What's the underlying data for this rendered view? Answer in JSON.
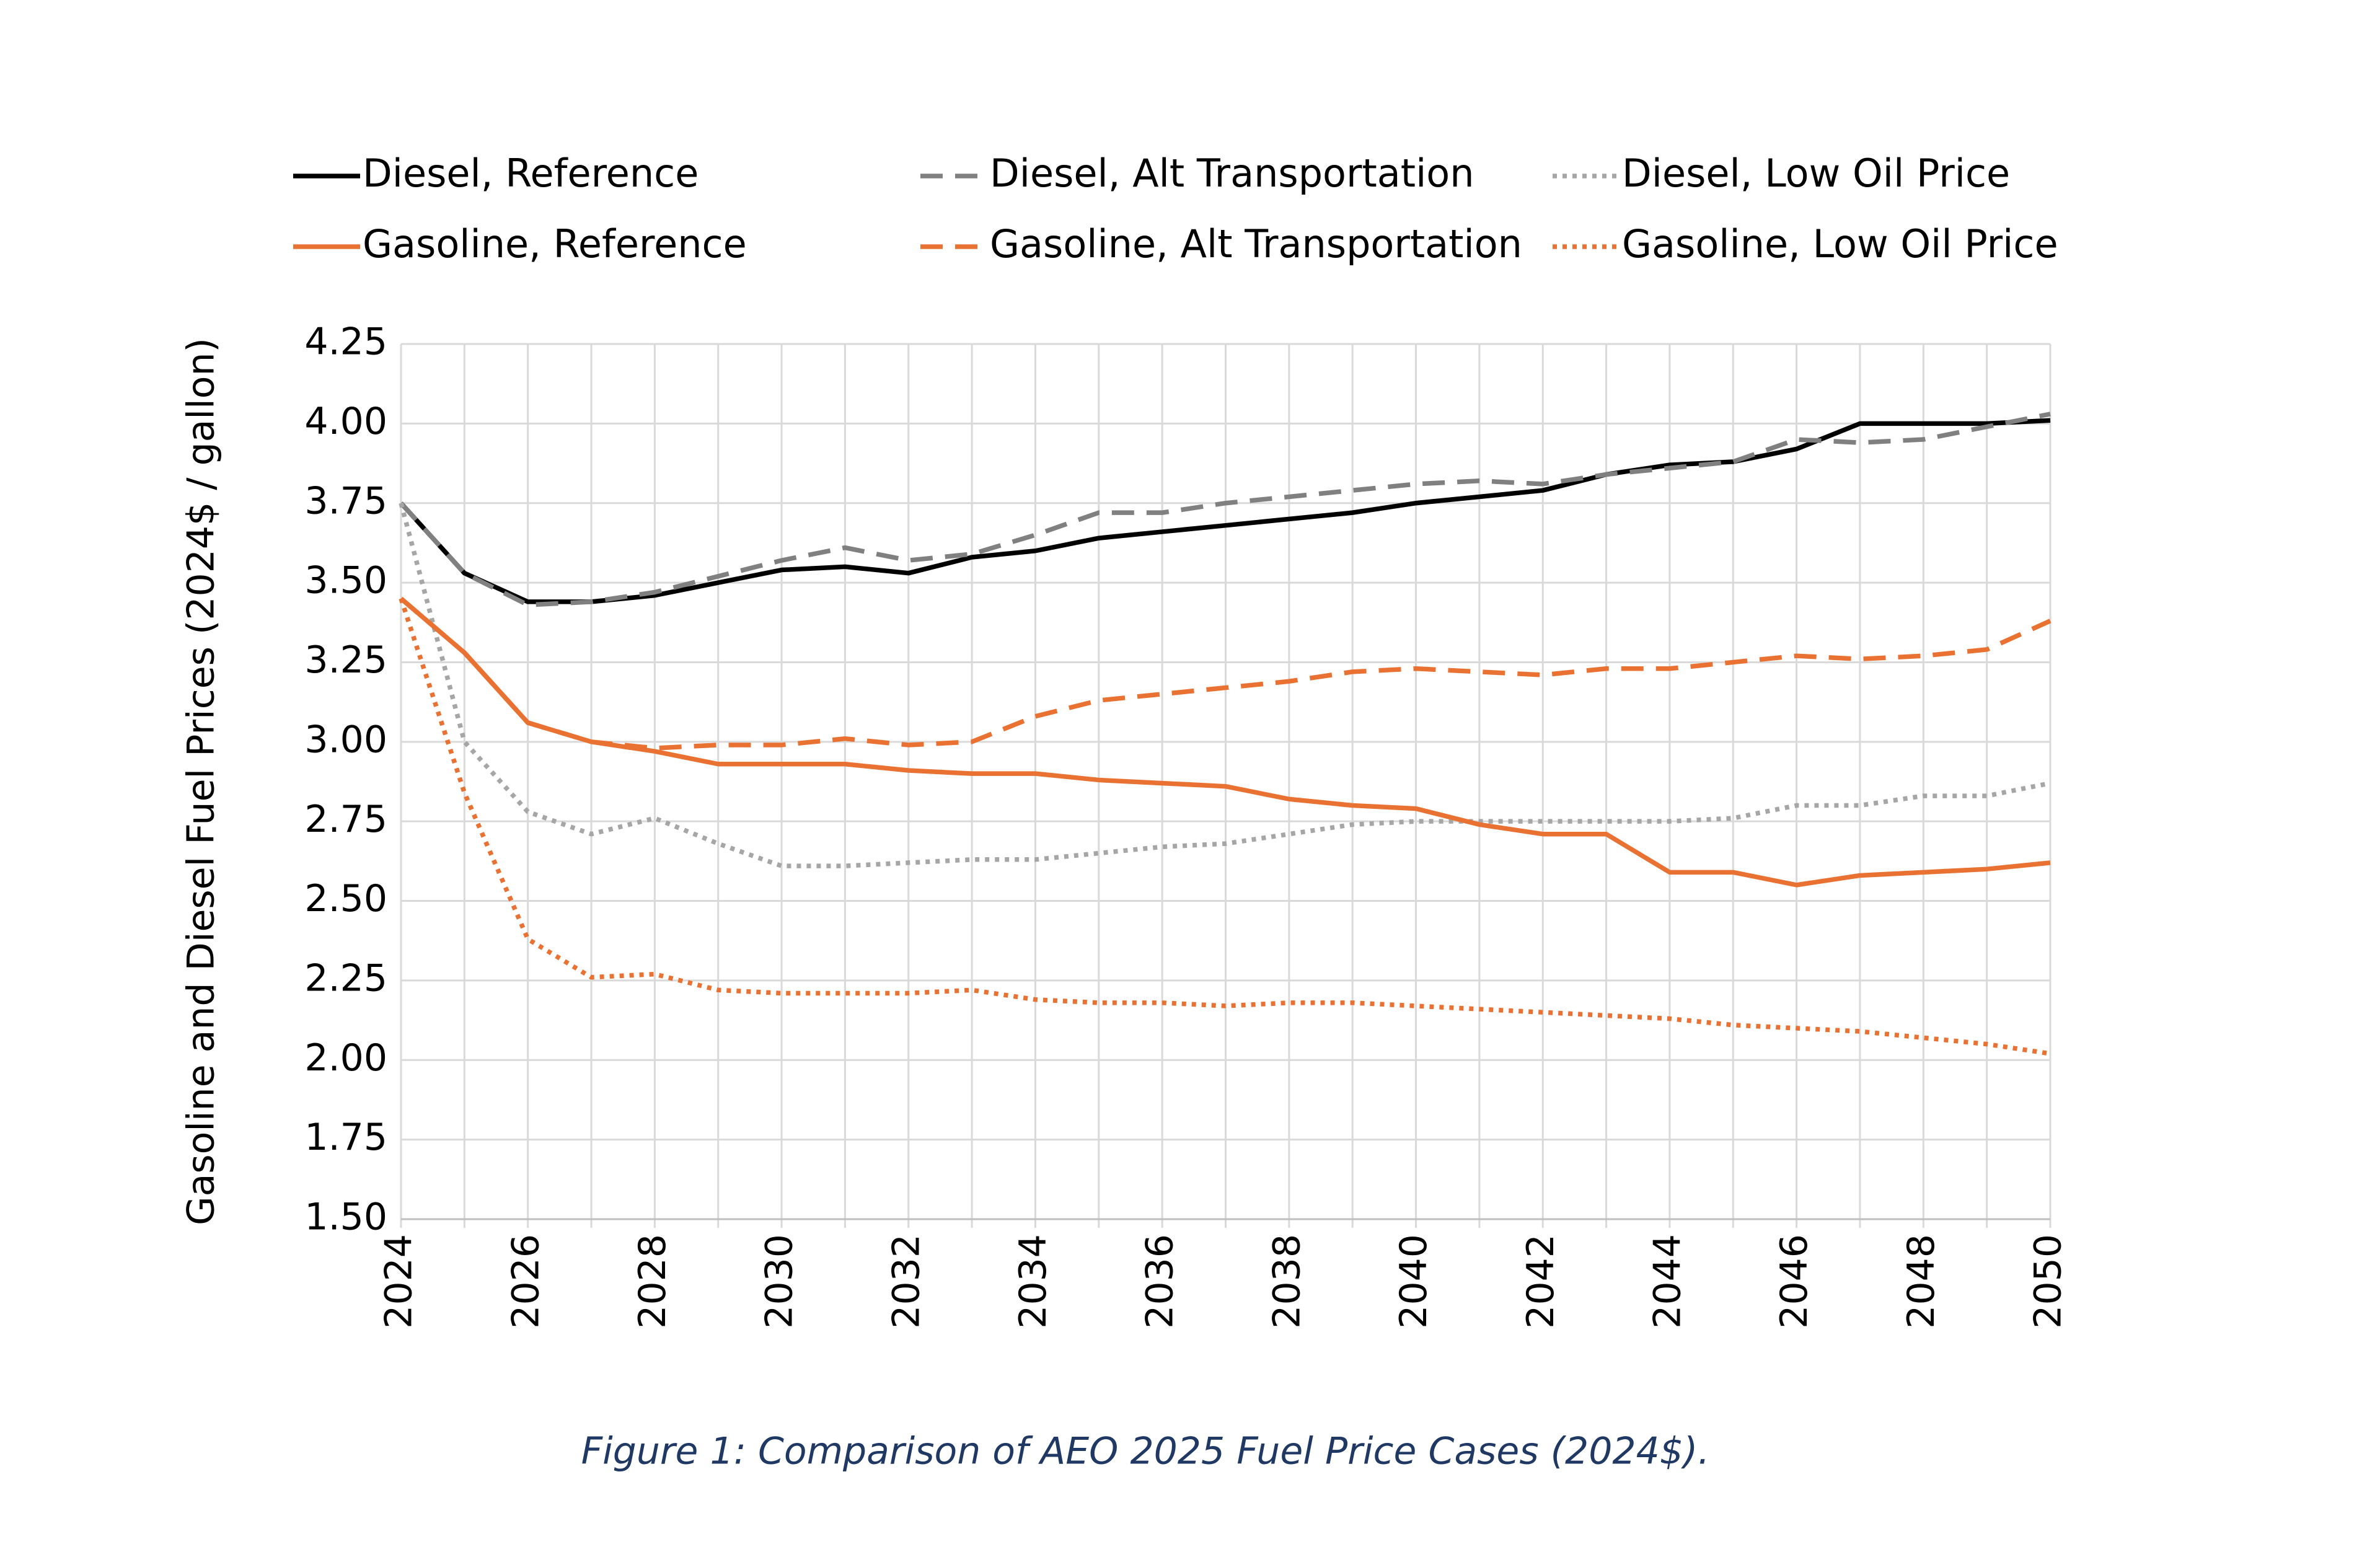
{
  "chart_data": {
    "type": "line",
    "caption": "Figure 1: Comparison of AEO 2025 Fuel Price Cases (2024$).",
    "y_label": "Gasoline and Diesel Fuel Prices (2024$ / gallon)",
    "x": [
      2024,
      2025,
      2026,
      2027,
      2028,
      2029,
      2030,
      2031,
      2032,
      2033,
      2034,
      2035,
      2036,
      2037,
      2038,
      2039,
      2040,
      2041,
      2042,
      2043,
      2044,
      2045,
      2046,
      2047,
      2048,
      2049,
      2050
    ],
    "xlim": [
      2024,
      2050
    ],
    "xticks": [
      2024,
      2026,
      2028,
      2030,
      2032,
      2034,
      2036,
      2038,
      2040,
      2042,
      2044,
      2046,
      2048,
      2050
    ],
    "ylim": [
      1.5,
      4.25
    ],
    "yticks": [
      {
        "value": 1.5,
        "label": "1.50"
      },
      1.75,
      {
        "value": 2,
        "label": "2.00"
      },
      2.25,
      {
        "value": 2.5,
        "label": "2.50"
      },
      2.75,
      {
        "value": 3,
        "label": "3.00"
      },
      3.25,
      {
        "value": 3.5,
        "label": "3.50"
      },
      3.75,
      {
        "value": 4,
        "label": "4.00"
      },
      4.25
    ],
    "grid": true,
    "legend": "top",
    "series": [
      {
        "name": "Diesel, Reference",
        "color": "#000000",
        "dash": "solid",
        "values": [
          3.75,
          3.53,
          3.44,
          3.44,
          3.46,
          3.5,
          3.54,
          3.55,
          3.53,
          3.58,
          3.6,
          3.64,
          3.66,
          3.68,
          3.7,
          3.72,
          3.75,
          3.77,
          3.79,
          3.84,
          3.87,
          3.88,
          3.92,
          4.0,
          4.0,
          4.0,
          4.01
        ]
      },
      {
        "name": "Diesel, Alt Transportation",
        "color": "#808080",
        "dash": "dashed",
        "values": [
          3.75,
          3.53,
          3.43,
          3.44,
          3.47,
          3.52,
          3.57,
          3.61,
          3.57,
          3.59,
          3.65,
          3.72,
          3.72,
          3.75,
          3.77,
          3.79,
          3.81,
          3.82,
          3.81,
          3.84,
          3.86,
          3.88,
          3.95,
          3.94,
          3.95,
          3.99,
          4.03
        ]
      },
      {
        "name": "Diesel, Low Oil Price",
        "color": "#a6a6a6",
        "dash": "dotted",
        "values": [
          3.75,
          3.0,
          2.78,
          2.71,
          2.76,
          2.68,
          2.61,
          2.61,
          2.62,
          2.63,
          2.63,
          2.65,
          2.67,
          2.68,
          2.71,
          2.74,
          2.75,
          2.75,
          2.75,
          2.75,
          2.75,
          2.76,
          2.8,
          2.8,
          2.83,
          2.83,
          2.87
        ]
      },
      {
        "name": "Gasoline, Reference",
        "color": "#e97132",
        "dash": "solid",
        "values": [
          3.45,
          3.28,
          3.06,
          3.0,
          2.97,
          2.93,
          2.93,
          2.93,
          2.91,
          2.9,
          2.9,
          2.88,
          2.87,
          2.86,
          2.82,
          2.8,
          2.79,
          2.74,
          2.71,
          2.71,
          2.59,
          2.59,
          2.55,
          2.58,
          2.59,
          2.6,
          2.62
        ]
      },
      {
        "name": "Gasoline, Alt Transportation",
        "color": "#e97132",
        "dash": "dashed",
        "values": [
          3.45,
          3.28,
          3.06,
          3.0,
          2.98,
          2.99,
          2.99,
          3.01,
          2.99,
          3.0,
          3.08,
          3.13,
          3.15,
          3.17,
          3.19,
          3.22,
          3.23,
          3.22,
          3.21,
          3.23,
          3.23,
          3.25,
          3.27,
          3.26,
          3.27,
          3.29,
          3.38
        ]
      },
      {
        "name": "Gasoline, Low Oil Price",
        "color": "#e97132",
        "dash": "dotted",
        "values": [
          3.45,
          2.84,
          2.38,
          2.26,
          2.27,
          2.22,
          2.21,
          2.21,
          2.21,
          2.22,
          2.19,
          2.18,
          2.18,
          2.17,
          2.18,
          2.18,
          2.17,
          2.16,
          2.15,
          2.14,
          2.13,
          2.11,
          2.1,
          2.09,
          2.07,
          2.05,
          2.02
        ]
      }
    ]
  }
}
